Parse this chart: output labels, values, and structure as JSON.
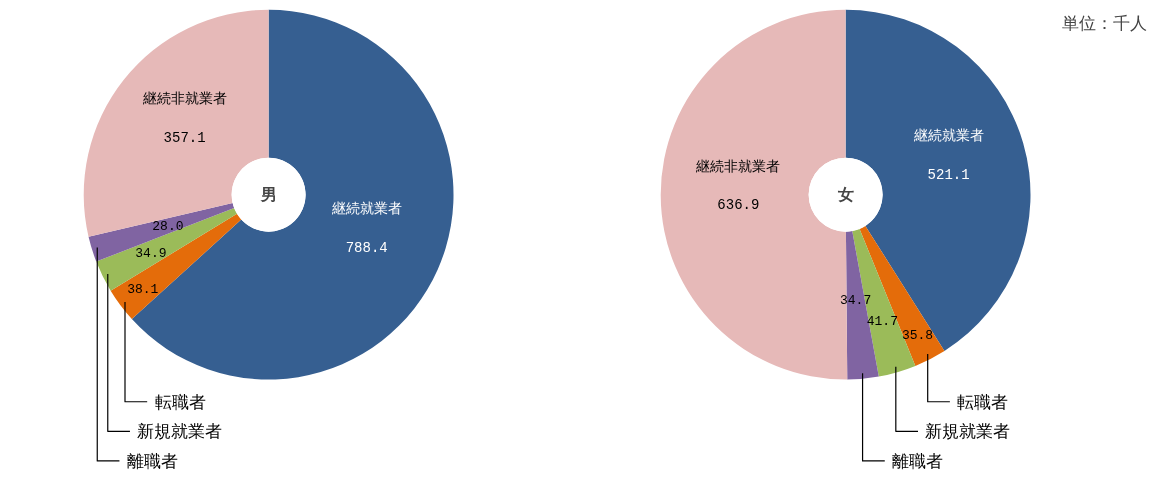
{
  "chart_data": [
    {
      "type": "donut",
      "title": "男",
      "categories": [
        "継続就業者",
        "転職者",
        "新規就業者",
        "離職者",
        "継続非就業者"
      ],
      "values": [
        788.4,
        38.1,
        34.9,
        28.0,
        357.1
      ],
      "colors": [
        "#365f91",
        "#e46c0a",
        "#9bbb59",
        "#8064a2",
        "#e6b9b8"
      ],
      "value_labels": [
        "788.4",
        "38.1",
        "34.9",
        "28.0",
        "357.1"
      ]
    },
    {
      "type": "donut",
      "title": "女",
      "categories": [
        "継続就業者",
        "転職者",
        "新規就業者",
        "離職者",
        "継続非就業者"
      ],
      "values": [
        521.1,
        35.8,
        41.7,
        34.7,
        636.9
      ],
      "colors": [
        "#365f91",
        "#e46c0a",
        "#9bbb59",
        "#8064a2",
        "#e6b9b8"
      ],
      "value_labels": [
        "521.1",
        "35.8",
        "41.7",
        "34.7",
        "636.9"
      ],
      "annotations": [
        "単位：千人"
      ]
    }
  ]
}
